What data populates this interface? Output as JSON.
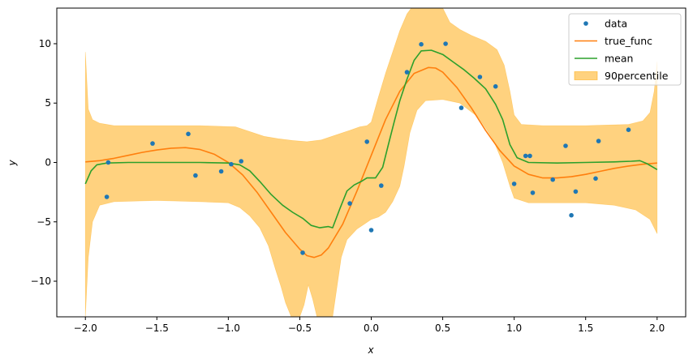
{
  "chart_data": {
    "type": "line",
    "title": "",
    "xlabel": "x",
    "ylabel": "y",
    "xlim": [
      -2.2,
      2.2
    ],
    "ylim": [
      -13,
      13
    ],
    "xticks": [
      -2.0,
      -1.5,
      -1.0,
      -0.5,
      0.0,
      0.5,
      1.0,
      1.5,
      2.0
    ],
    "xtick_labels": [
      "−2.0",
      "−1.5",
      "−1.0",
      "−0.5",
      "0.0",
      "0.5",
      "1.0",
      "1.5",
      "2.0"
    ],
    "yticks": [
      -10,
      -5,
      0,
      5,
      10
    ],
    "ytick_labels": [
      "−10",
      "−5",
      "0",
      "5",
      "10"
    ],
    "grid": false,
    "legend_position": "top-right",
    "colors": {
      "data": "#1f77b4",
      "true_func": "#ff7f0e",
      "mean": "#2ca02c",
      "band": "#ffa500"
    },
    "legend": [
      {
        "key": "data",
        "label": "data",
        "kind": "marker"
      },
      {
        "key": "true_func",
        "label": "true_func",
        "kind": "line"
      },
      {
        "key": "mean",
        "label": "mean",
        "kind": "line"
      },
      {
        "key": "band",
        "label": "90percentile",
        "kind": "patch"
      }
    ],
    "series": [
      {
        "name": "data",
        "kind": "scatter",
        "points": [
          [
            -1.85,
            -2.9
          ],
          [
            -1.84,
            0.0
          ],
          [
            -1.53,
            1.6
          ],
          [
            -1.28,
            2.4
          ],
          [
            -1.23,
            -1.1
          ],
          [
            -1.05,
            -0.75
          ],
          [
            -0.98,
            -0.15
          ],
          [
            -0.91,
            0.1
          ],
          [
            -0.48,
            -7.6
          ],
          [
            -0.15,
            -3.45
          ],
          [
            -0.03,
            1.75
          ],
          [
            0.0,
            -5.7
          ],
          [
            0.07,
            -1.95
          ],
          [
            0.25,
            7.6
          ],
          [
            0.35,
            9.95
          ],
          [
            0.52,
            10.0
          ],
          [
            0.63,
            4.6
          ],
          [
            0.76,
            7.2
          ],
          [
            0.87,
            6.4
          ],
          [
            1.0,
            -1.8
          ],
          [
            1.08,
            0.55
          ],
          [
            1.11,
            0.55
          ],
          [
            1.13,
            -2.55
          ],
          [
            1.27,
            -1.45
          ],
          [
            1.36,
            1.4
          ],
          [
            1.4,
            -4.45
          ],
          [
            1.43,
            -2.45
          ],
          [
            1.57,
            -1.35
          ],
          [
            1.59,
            1.8
          ],
          [
            1.8,
            2.75
          ]
        ]
      },
      {
        "name": "true_func",
        "kind": "line",
        "points": [
          [
            -2.0,
            0.05
          ],
          [
            -1.9,
            0.15
          ],
          [
            -1.8,
            0.35
          ],
          [
            -1.7,
            0.6
          ],
          [
            -1.6,
            0.85
          ],
          [
            -1.5,
            1.05
          ],
          [
            -1.4,
            1.2
          ],
          [
            -1.3,
            1.25
          ],
          [
            -1.2,
            1.1
          ],
          [
            -1.1,
            0.7
          ],
          [
            -1.0,
            0.0
          ],
          [
            -0.9,
            -1.05
          ],
          [
            -0.8,
            -2.5
          ],
          [
            -0.7,
            -4.2
          ],
          [
            -0.6,
            -5.9
          ],
          [
            -0.5,
            -7.3
          ],
          [
            -0.45,
            -7.85
          ],
          [
            -0.4,
            -8.0
          ],
          [
            -0.35,
            -7.8
          ],
          [
            -0.3,
            -7.2
          ],
          [
            -0.2,
            -5.2
          ],
          [
            -0.1,
            -2.4
          ],
          [
            0.0,
            0.6
          ],
          [
            0.1,
            3.6
          ],
          [
            0.2,
            6.0
          ],
          [
            0.3,
            7.5
          ],
          [
            0.4,
            8.0
          ],
          [
            0.45,
            7.95
          ],
          [
            0.5,
            7.6
          ],
          [
            0.6,
            6.3
          ],
          [
            0.7,
            4.6
          ],
          [
            0.8,
            2.7
          ],
          [
            0.9,
            1.0
          ],
          [
            1.0,
            -0.3
          ],
          [
            1.1,
            -1.0
          ],
          [
            1.2,
            -1.3
          ],
          [
            1.3,
            -1.3
          ],
          [
            1.4,
            -1.2
          ],
          [
            1.5,
            -1.0
          ],
          [
            1.6,
            -0.75
          ],
          [
            1.7,
            -0.5
          ],
          [
            1.8,
            -0.3
          ],
          [
            1.9,
            -0.15
          ],
          [
            2.0,
            -0.05
          ]
        ]
      },
      {
        "name": "mean",
        "kind": "line",
        "points": [
          [
            -2.0,
            -1.8
          ],
          [
            -1.96,
            -0.7
          ],
          [
            -1.92,
            -0.2
          ],
          [
            -1.85,
            -0.05
          ],
          [
            -1.7,
            0.0
          ],
          [
            -1.5,
            0.0
          ],
          [
            -1.2,
            0.0
          ],
          [
            -1.0,
            -0.05
          ],
          [
            -0.92,
            -0.2
          ],
          [
            -0.85,
            -0.7
          ],
          [
            -0.78,
            -1.6
          ],
          [
            -0.7,
            -2.7
          ],
          [
            -0.62,
            -3.6
          ],
          [
            -0.55,
            -4.2
          ],
          [
            -0.48,
            -4.7
          ],
          [
            -0.42,
            -5.3
          ],
          [
            -0.36,
            -5.5
          ],
          [
            -0.3,
            -5.4
          ],
          [
            -0.27,
            -5.5
          ],
          [
            -0.22,
            -3.9
          ],
          [
            -0.17,
            -2.4
          ],
          [
            -0.12,
            -1.9
          ],
          [
            -0.07,
            -1.6
          ],
          [
            -0.03,
            -1.3
          ],
          [
            0.03,
            -1.3
          ],
          [
            0.08,
            -0.4
          ],
          [
            0.12,
            1.5
          ],
          [
            0.16,
            3.4
          ],
          [
            0.2,
            5.2
          ],
          [
            0.25,
            7.0
          ],
          [
            0.3,
            8.6
          ],
          [
            0.35,
            9.4
          ],
          [
            0.42,
            9.45
          ],
          [
            0.5,
            9.1
          ],
          [
            0.58,
            8.4
          ],
          [
            0.65,
            7.8
          ],
          [
            0.72,
            7.1
          ],
          [
            0.8,
            6.2
          ],
          [
            0.87,
            4.9
          ],
          [
            0.92,
            3.6
          ],
          [
            0.97,
            1.5
          ],
          [
            1.02,
            0.4
          ],
          [
            1.1,
            0.0
          ],
          [
            1.3,
            -0.05
          ],
          [
            1.5,
            0.0
          ],
          [
            1.7,
            0.05
          ],
          [
            1.82,
            0.1
          ],
          [
            1.88,
            0.15
          ],
          [
            1.93,
            -0.1
          ],
          [
            2.0,
            -0.6
          ]
        ]
      }
    ],
    "band": {
      "name": "90percentile",
      "upper": [
        [
          -2.0,
          9.3
        ],
        [
          -1.98,
          4.5
        ],
        [
          -1.95,
          3.6
        ],
        [
          -1.9,
          3.3
        ],
        [
          -1.8,
          3.1
        ],
        [
          -1.5,
          3.1
        ],
        [
          -1.2,
          3.1
        ],
        [
          -0.95,
          3.0
        ],
        [
          -0.85,
          2.6
        ],
        [
          -0.75,
          2.2
        ],
        [
          -0.65,
          2.0
        ],
        [
          -0.55,
          1.85
        ],
        [
          -0.45,
          1.75
        ],
        [
          -0.35,
          1.9
        ],
        [
          -0.25,
          2.3
        ],
        [
          -0.15,
          2.7
        ],
        [
          -0.08,
          3.0
        ],
        [
          -0.03,
          3.1
        ],
        [
          0.0,
          3.4
        ],
        [
          0.05,
          5.5
        ],
        [
          0.1,
          7.5
        ],
        [
          0.15,
          9.3
        ],
        [
          0.2,
          11.1
        ],
        [
          0.25,
          12.5
        ],
        [
          0.28,
          13.0
        ],
        [
          0.5,
          13.0
        ],
        [
          0.55,
          11.8
        ],
        [
          0.62,
          11.2
        ],
        [
          0.7,
          10.7
        ],
        [
          0.8,
          10.2
        ],
        [
          0.88,
          9.5
        ],
        [
          0.93,
          8.2
        ],
        [
          0.97,
          6.0
        ],
        [
          1.0,
          4.0
        ],
        [
          1.05,
          3.2
        ],
        [
          1.2,
          3.1
        ],
        [
          1.5,
          3.1
        ],
        [
          1.8,
          3.2
        ],
        [
          1.9,
          3.5
        ],
        [
          1.95,
          4.2
        ],
        [
          1.98,
          6.0
        ],
        [
          2.0,
          8.5
        ]
      ],
      "lower": [
        [
          -2.0,
          -13.0
        ],
        [
          -1.98,
          -8.0
        ],
        [
          -1.95,
          -5.0
        ],
        [
          -1.9,
          -3.6
        ],
        [
          -1.8,
          -3.3
        ],
        [
          -1.5,
          -3.2
        ],
        [
          -1.2,
          -3.3
        ],
        [
          -1.0,
          -3.4
        ],
        [
          -0.92,
          -3.8
        ],
        [
          -0.85,
          -4.5
        ],
        [
          -0.78,
          -5.5
        ],
        [
          -0.72,
          -7.0
        ],
        [
          -0.67,
          -9.0
        ],
        [
          -0.63,
          -10.5
        ],
        [
          -0.6,
          -11.8
        ],
        [
          -0.56,
          -13.0
        ],
        [
          -0.5,
          -13.0
        ],
        [
          -0.47,
          -12.0
        ],
        [
          -0.44,
          -10.3
        ],
        [
          -0.41,
          -11.5
        ],
        [
          -0.38,
          -13.0
        ],
        [
          -0.27,
          -13.0
        ],
        [
          -0.24,
          -10.5
        ],
        [
          -0.21,
          -8.0
        ],
        [
          -0.17,
          -6.5
        ],
        [
          -0.1,
          -5.6
        ],
        [
          -0.05,
          -5.2
        ],
        [
          0.0,
          -4.8
        ],
        [
          0.05,
          -4.6
        ],
        [
          0.1,
          -4.2
        ],
        [
          0.15,
          -3.3
        ],
        [
          0.2,
          -2.0
        ],
        [
          0.23,
          -0.3
        ],
        [
          0.27,
          2.5
        ],
        [
          0.32,
          4.4
        ],
        [
          0.38,
          5.2
        ],
        [
          0.5,
          5.3
        ],
        [
          0.62,
          5.0
        ],
        [
          0.75,
          3.8
        ],
        [
          0.85,
          2.0
        ],
        [
          0.92,
          0.0
        ],
        [
          0.97,
          -2.0
        ],
        [
          1.0,
          -3.0
        ],
        [
          1.1,
          -3.4
        ],
        [
          1.3,
          -3.4
        ],
        [
          1.5,
          -3.4
        ],
        [
          1.7,
          -3.6
        ],
        [
          1.85,
          -4.0
        ],
        [
          1.95,
          -4.8
        ],
        [
          2.0,
          -6.0
        ]
      ]
    }
  }
}
